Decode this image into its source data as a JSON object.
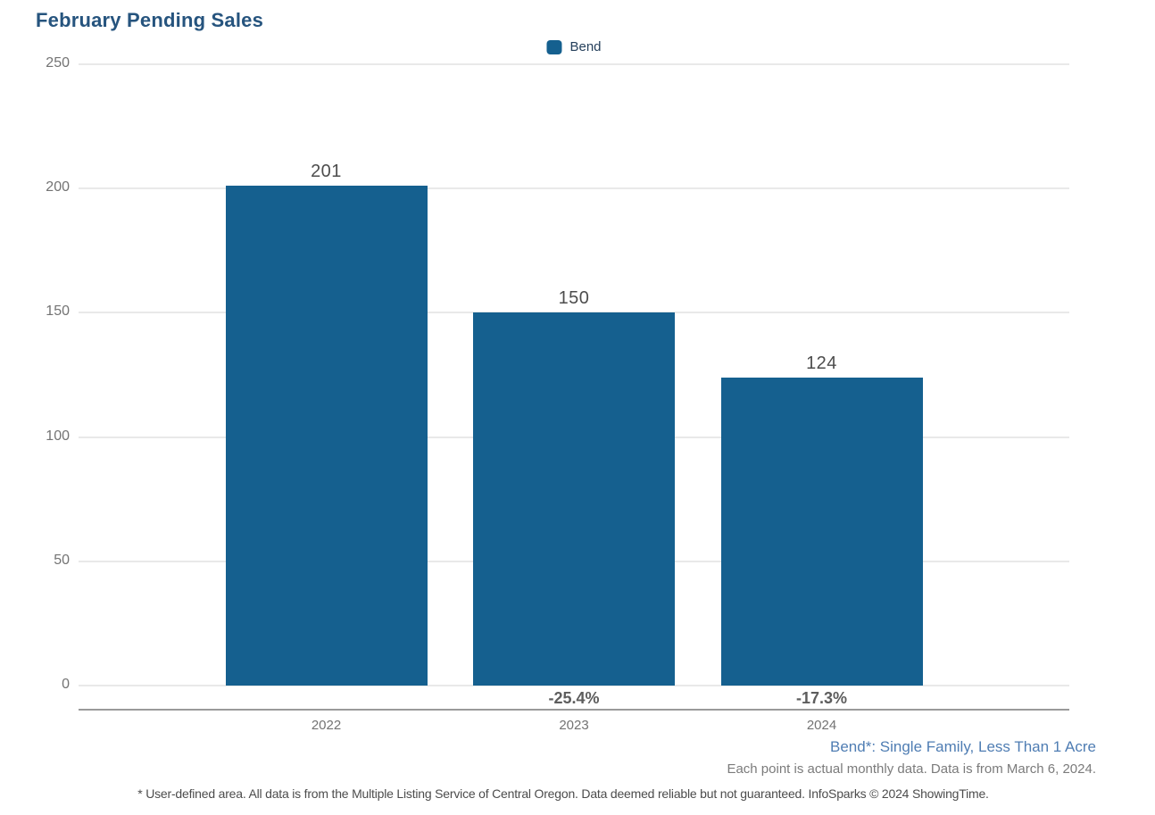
{
  "page": {
    "title": "February Pending Sales"
  },
  "chart_data": {
    "type": "bar",
    "title": "February Pending Sales",
    "categories": [
      "2022",
      "2023",
      "2024"
    ],
    "series": [
      {
        "name": "Bend",
        "color": "#15608f",
        "values": [
          201,
          150,
          124
        ]
      }
    ],
    "value_labels": [
      "201",
      "150",
      "124"
    ],
    "change_labels": [
      "",
      "-25.4%",
      "-17.3%"
    ],
    "xlabel": "",
    "ylabel": "",
    "ylim": [
      0,
      250
    ],
    "yticks": [
      0,
      50,
      100,
      150,
      200,
      250
    ],
    "grid": true,
    "legend_position": "top-center"
  },
  "footnotes": {
    "series_definition": "Bend*: Single Family, Less Than 1 Acre",
    "data_note": "Each point is actual monthly data. Data is from March 6, 2024.",
    "disclaimer": "* User-defined area. All data is from the Multiple Listing Service of Central Oregon. Data deemed reliable but not guaranteed. InfoSparks © 2024 ShowingTime."
  },
  "colors": {
    "bar_fill": "#15608f",
    "title_text": "#26547e",
    "footnote_link": "#4f7db3",
    "gridline": "#e9e9e9",
    "axis_line": "#9a9a9a"
  }
}
